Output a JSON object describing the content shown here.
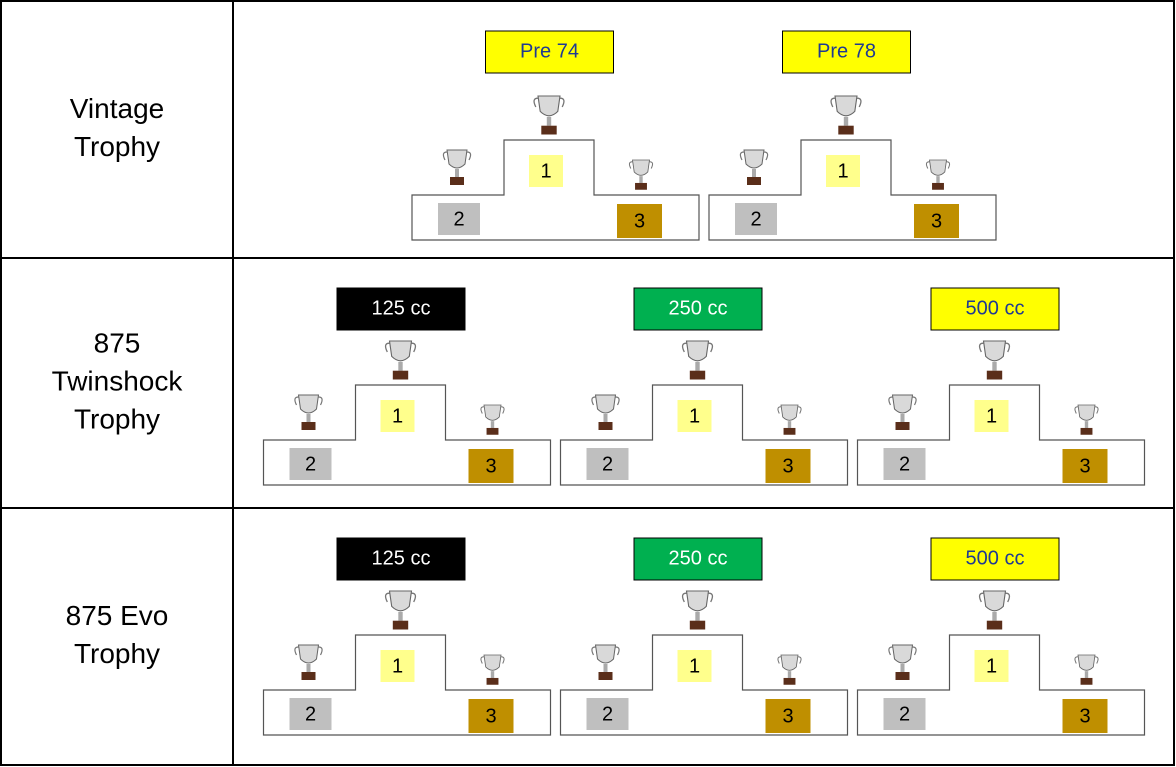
{
  "rows": [
    {
      "label": [
        "Vintage",
        "Trophy"
      ],
      "podiums": [
        {
          "class": "Pre 74",
          "badge_color": "#ffff00",
          "badge_text_color": "#1f3a93",
          "places": [
            "1",
            "2",
            "3"
          ]
        },
        {
          "class": "Pre 78",
          "badge_color": "#ffff00",
          "badge_text_color": "#1f3a93",
          "places": [
            "1",
            "2",
            "3"
          ]
        }
      ]
    },
    {
      "label": [
        "875",
        "Twinshock",
        "Trophy"
      ],
      "podiums": [
        {
          "class": "125 cc",
          "badge_color": "#000000",
          "badge_text_color": "#ffffff",
          "places": [
            "1",
            "2",
            "3"
          ]
        },
        {
          "class": "250 cc",
          "badge_color": "#00b050",
          "badge_text_color": "#ffffff",
          "places": [
            "1",
            "2",
            "3"
          ]
        },
        {
          "class": "500 cc",
          "badge_color": "#ffff00",
          "badge_text_color": "#1f3a93",
          "places": [
            "1",
            "2",
            "3"
          ]
        }
      ]
    },
    {
      "label": [
        "875 Evo",
        "Trophy"
      ],
      "podiums": [
        {
          "class": "125 cc",
          "badge_color": "#000000",
          "badge_text_color": "#ffffff",
          "places": [
            "1",
            "2",
            "3"
          ]
        },
        {
          "class": "250 cc",
          "badge_color": "#00b050",
          "badge_text_color": "#ffffff",
          "places": [
            "1",
            "2",
            "3"
          ]
        },
        {
          "class": "500 cc",
          "badge_color": "#ffff00",
          "badge_text_color": "#1f3a93",
          "places": [
            "1",
            "2",
            "3"
          ]
        }
      ]
    }
  ]
}
